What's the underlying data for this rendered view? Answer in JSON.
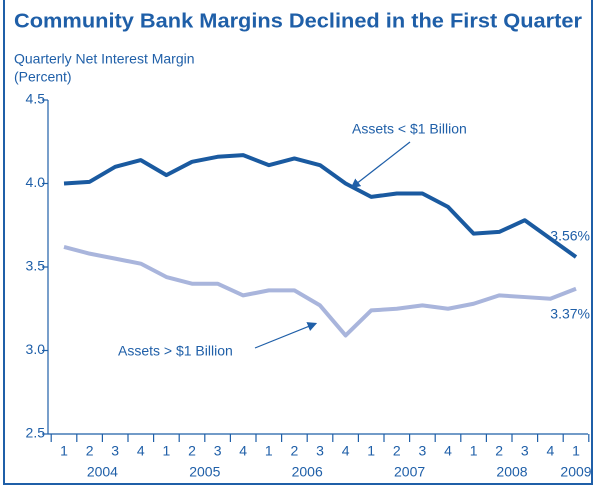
{
  "chart_data": {
    "type": "line",
    "title": "Community Bank Margins Declined in the First Quarter",
    "y_label": "Quarterly Net Interest Margin",
    "y_unit": "(Percent)",
    "categories": [
      "1",
      "2",
      "3",
      "4",
      "1",
      "2",
      "3",
      "4",
      "1",
      "2",
      "3",
      "4",
      "1",
      "2",
      "3",
      "4",
      "1",
      "2",
      "3",
      "4",
      "1"
    ],
    "x_groups": [
      {
        "label": "2004",
        "span": 4
      },
      {
        "label": "2005",
        "span": 4
      },
      {
        "label": "2006",
        "span": 4
      },
      {
        "label": "2007",
        "span": 4
      },
      {
        "label": "2008",
        "span": 4
      },
      {
        "label": "2009",
        "span": 1
      }
    ],
    "series": [
      {
        "name": "Assets < $1 Billion",
        "color": "#1a5aa0",
        "values": [
          4.0,
          4.01,
          4.1,
          4.14,
          4.05,
          4.13,
          4.16,
          4.17,
          4.11,
          4.15,
          4.11,
          4.0,
          3.92,
          3.94,
          3.94,
          3.86,
          3.7,
          3.71,
          3.78,
          3.67,
          3.56
        ],
        "last_value_label": "3.56%"
      },
      {
        "name": "Assets > $1 Billion",
        "color": "#a9b5dc",
        "values": [
          3.62,
          3.58,
          3.55,
          3.52,
          3.44,
          3.4,
          3.4,
          3.33,
          3.36,
          3.36,
          3.27,
          3.09,
          3.24,
          3.25,
          3.27,
          3.25,
          3.28,
          3.33,
          3.32,
          3.31,
          3.37
        ],
        "last_value_label": "3.37%"
      }
    ],
    "ylim": [
      2.5,
      4.5
    ],
    "yticks": [
      4.5,
      {
        "value": 4.0,
        "label": "4.0"
      },
      3.5,
      {
        "value": 3.0,
        "label": "3.0"
      },
      2.5
    ]
  }
}
